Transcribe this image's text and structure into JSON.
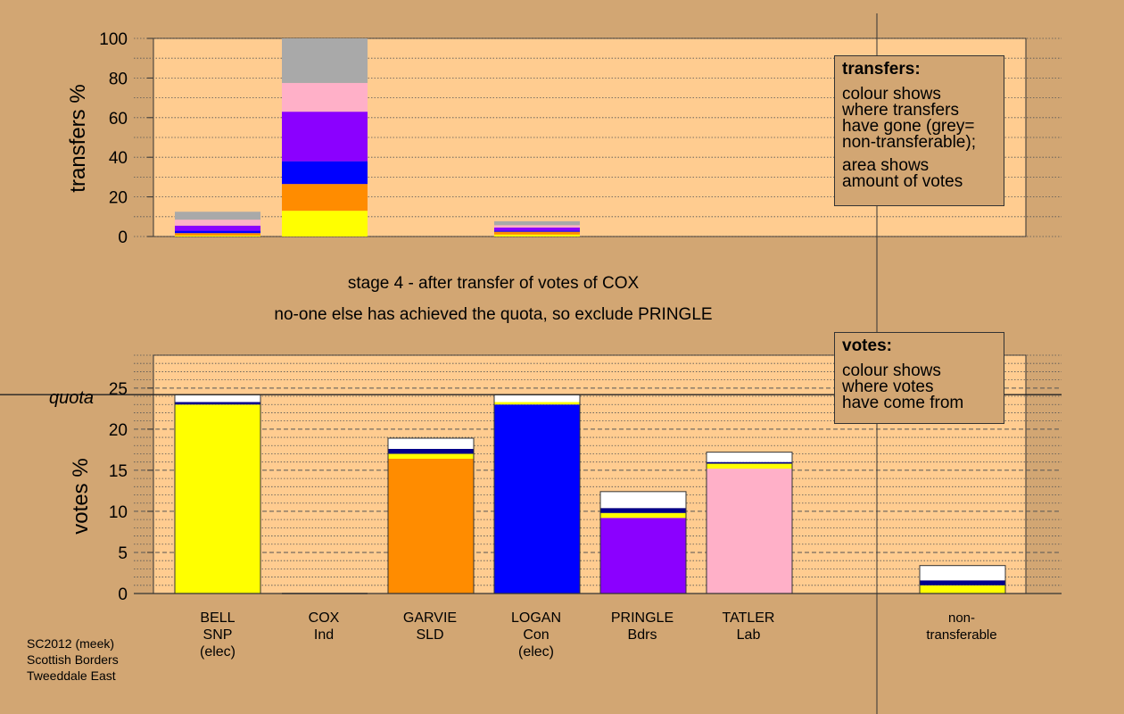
{
  "chart_data": [
    {
      "type": "bar",
      "stacked": true,
      "ylabel": "transfers %",
      "ylim": [
        0,
        100
      ],
      "yticks": [
        0,
        20,
        40,
        60,
        80,
        100
      ],
      "categories": [
        "BELL",
        "COX",
        "GARVIE",
        "LOGAN",
        "PRINGLE",
        "TATLER",
        "non-transferable"
      ],
      "segment_colors": {
        "yellow": "#ffff00",
        "orange": "#ff8c00",
        "blue": "#0000ff",
        "purple": "#8b00ff",
        "pink": "#ffb0c8",
        "grey": "#a9a9a9"
      },
      "stacks": [
        [
          {
            "color": "#ffff00",
            "value": 0.5
          },
          {
            "color": "#ff8c00",
            "value": 1.2
          },
          {
            "color": "#0000ff",
            "value": 1.2
          },
          {
            "color": "#8b00ff",
            "value": 2.6
          },
          {
            "color": "#ffb0c8",
            "value": 3.0
          },
          {
            "color": "#a9a9a9",
            "value": 4.0
          }
        ],
        [
          {
            "color": "#ffff00",
            "value": 13.0
          },
          {
            "color": "#ff8c00",
            "value": 13.5
          },
          {
            "color": "#0000ff",
            "value": 11.5
          },
          {
            "color": "#8b00ff",
            "value": 25.0
          },
          {
            "color": "#ffb0c8",
            "value": 14.5
          },
          {
            "color": "#a9a9a9",
            "value": 22.5
          }
        ],
        [],
        [
          {
            "color": "#ffff00",
            "value": 1.0
          },
          {
            "color": "#ff8c00",
            "value": 1.4
          },
          {
            "color": "#0000ff",
            "value": 0.6
          },
          {
            "color": "#8b00ff",
            "value": 1.5
          },
          {
            "color": "#ffb0c8",
            "value": 1.2
          },
          {
            "color": "#a9a9a9",
            "value": 2.0
          }
        ],
        [],
        [],
        []
      ]
    },
    {
      "type": "bar",
      "stacked": true,
      "ylabel": "votes %",
      "ylim": [
        0,
        29
      ],
      "yticks": [
        0,
        5,
        10,
        15,
        20,
        25
      ],
      "quota": 24.2,
      "quota_label": "quota",
      "categories": [
        "BELL",
        "COX",
        "GARVIE",
        "LOGAN",
        "PRINGLE",
        "TATLER",
        "non-transferable"
      ],
      "stacks": [
        [
          {
            "color": "#ffff00",
            "value": 23.0
          },
          {
            "color": "#00008b",
            "value": 0.3
          },
          {
            "color": "#ffffff",
            "value": 0.9
          }
        ],
        [],
        [
          {
            "color": "#ff8c00",
            "value": 16.4
          },
          {
            "color": "#ffff00",
            "value": 0.6
          },
          {
            "color": "#00008b",
            "value": 0.6
          },
          {
            "color": "#ffffff",
            "value": 1.3
          }
        ],
        [
          {
            "color": "#0000ff",
            "value": 23.0
          },
          {
            "color": "#ffff00",
            "value": 0.3
          },
          {
            "color": "#ffffff",
            "value": 0.9
          }
        ],
        [
          {
            "color": "#8b00ff",
            "value": 9.2
          },
          {
            "color": "#ffff00",
            "value": 0.6
          },
          {
            "color": "#00008b",
            "value": 0.6
          },
          {
            "color": "#ffffff",
            "value": 2.0
          }
        ],
        [
          {
            "color": "#ffb0c8",
            "value": 15.2
          },
          {
            "color": "#ffff00",
            "value": 0.6
          },
          {
            "color": "#00008b",
            "value": 0.2
          },
          {
            "color": "#ffffff",
            "value": 1.2
          }
        ],
        [
          {
            "color": "#ffff00",
            "value": 1.0
          },
          {
            "color": "#00008b",
            "value": 0.6
          },
          {
            "color": "#ffffff",
            "value": 1.8
          }
        ]
      ]
    }
  ],
  "candidates": [
    {
      "name": "BELL",
      "party": "SNP",
      "status": "(elec)"
    },
    {
      "name": "COX",
      "party": "Ind",
      "status": ""
    },
    {
      "name": "GARVIE",
      "party": "SLD",
      "status": ""
    },
    {
      "name": "LOGAN",
      "party": "Con",
      "status": "(elec)"
    },
    {
      "name": "PRINGLE",
      "party": "Bdrs",
      "status": ""
    },
    {
      "name": "TATLER",
      "party": "Lab",
      "status": ""
    },
    {
      "name": "non-",
      "party": "transferable",
      "status": ""
    }
  ],
  "stage_text": {
    "line1": "stage 4 - after transfer of votes of COX",
    "line2": "no-one else has achieved the quota, so exclude PRINGLE"
  },
  "legend_transfers": {
    "title": "transfers:",
    "lines": [
      "colour shows",
      "where transfers",
      "have gone (grey=",
      "non-transferable);"
    ],
    "lines2": [
      "area shows",
      "amount of votes"
    ]
  },
  "legend_votes": {
    "title": "votes:",
    "lines": [
      "colour shows",
      "where votes",
      "have come from"
    ]
  },
  "footer": [
    "SC2012 (meek)",
    "Scottish Borders",
    "Tweeddale East"
  ],
  "colors": {
    "background": "#d2a673",
    "plot_bg": "#ffcc90"
  }
}
